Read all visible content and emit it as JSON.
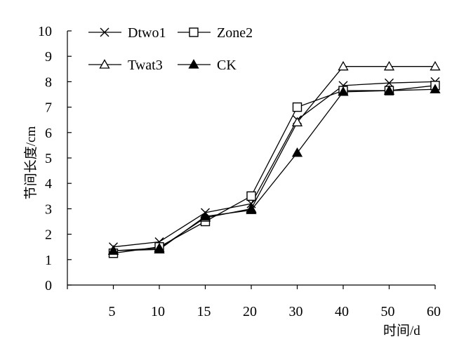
{
  "chart_data": {
    "type": "line",
    "categories": [
      "5",
      "10",
      "15",
      "20",
      "30",
      "40",
      "50",
      "60"
    ],
    "ylim": [
      0,
      10
    ],
    "yticks": [
      "0",
      "1",
      "2",
      "3",
      "4",
      "5",
      "6",
      "7",
      "8",
      "9",
      "10"
    ],
    "xlabel": "时间/d",
    "ylabel": "节间长度/cm",
    "grid": false,
    "legend_position": "top-left",
    "series": [
      {
        "name": "Dtwo1",
        "marker": "x",
        "values": [
          1.5,
          1.7,
          2.85,
          3.2,
          6.5,
          7.85,
          7.95,
          8.0
        ]
      },
      {
        "name": "Zone2",
        "marker": "square-open",
        "values": [
          1.25,
          1.5,
          2.5,
          3.5,
          7.0,
          7.65,
          7.65,
          7.85
        ]
      },
      {
        "name": "Twat3",
        "marker": "triangle-open",
        "values": [
          1.35,
          1.45,
          2.65,
          3.0,
          6.4,
          8.6,
          8.6,
          8.6
        ]
      },
      {
        "name": "CK",
        "marker": "triangle-filled",
        "values": [
          1.35,
          1.4,
          2.7,
          2.95,
          5.2,
          7.6,
          7.65,
          7.7
        ]
      }
    ]
  }
}
